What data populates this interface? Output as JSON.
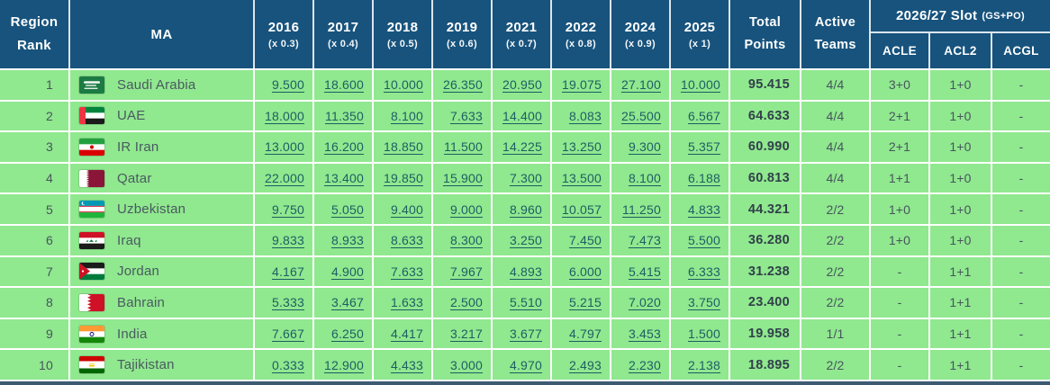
{
  "table": {
    "header": {
      "region_rank": "Region Rank",
      "ma": "MA",
      "years": [
        {
          "year": "2016",
          "mult": "(x 0.3)"
        },
        {
          "year": "2017",
          "mult": "(x 0.4)"
        },
        {
          "year": "2018",
          "mult": "(x 0.5)"
        },
        {
          "year": "2019",
          "mult": "(x 0.6)"
        },
        {
          "year": "2021",
          "mult": "(x 0.7)"
        },
        {
          "year": "2022",
          "mult": "(x 0.8)"
        },
        {
          "year": "2024",
          "mult": "(x 0.9)"
        },
        {
          "year": "2025",
          "mult": "(x 1)"
        }
      ],
      "total": "Total Points",
      "active": "Active Teams",
      "slot_title": "2026/27 Slot",
      "slot_subtitle": "(GS+PO)",
      "slot_cols": [
        "ACLE",
        "ACL2",
        "ACGL"
      ]
    },
    "rows": [
      {
        "rank": "1",
        "ma": "Saudi Arabia",
        "flag": "saudi-arabia",
        "scores": [
          "9.500",
          "18.600",
          "10.000",
          "26.350",
          "20.950",
          "19.075",
          "27.100",
          "10.000"
        ],
        "total": "95.415",
        "active": "4/4",
        "acle": "3+0",
        "acl2": "1+0",
        "acgl": "-"
      },
      {
        "rank": "2",
        "ma": "UAE",
        "flag": "uae",
        "scores": [
          "18.000",
          "11.350",
          "8.100",
          "7.633",
          "14.400",
          "8.083",
          "25.500",
          "6.567"
        ],
        "total": "64.633",
        "active": "4/4",
        "acle": "2+1",
        "acl2": "1+0",
        "acgl": "-"
      },
      {
        "rank": "3",
        "ma": "IR Iran",
        "flag": "iran",
        "scores": [
          "13.000",
          "16.200",
          "18.850",
          "11.500",
          "14.225",
          "13.250",
          "9.300",
          "5.357"
        ],
        "total": "60.990",
        "active": "4/4",
        "acle": "2+1",
        "acl2": "1+0",
        "acgl": "-"
      },
      {
        "rank": "4",
        "ma": "Qatar",
        "flag": "qatar",
        "scores": [
          "22.000",
          "13.400",
          "19.850",
          "15.900",
          "7.300",
          "13.500",
          "8.100",
          "6.188"
        ],
        "total": "60.813",
        "active": "4/4",
        "acle": "1+1",
        "acl2": "1+0",
        "acgl": "-"
      },
      {
        "rank": "5",
        "ma": "Uzbekistan",
        "flag": "uzbekistan",
        "scores": [
          "9.750",
          "5.050",
          "9.400",
          "9.000",
          "8.960",
          "10.057",
          "11.250",
          "4.833"
        ],
        "total": "44.321",
        "active": "2/2",
        "acle": "1+0",
        "acl2": "1+0",
        "acgl": "-"
      },
      {
        "rank": "6",
        "ma": "Iraq",
        "flag": "iraq",
        "scores": [
          "9.833",
          "8.933",
          "8.633",
          "8.300",
          "3.250",
          "7.450",
          "7.473",
          "5.500"
        ],
        "total": "36.280",
        "active": "2/2",
        "acle": "1+0",
        "acl2": "1+0",
        "acgl": "-"
      },
      {
        "rank": "7",
        "ma": "Jordan",
        "flag": "jordan",
        "scores": [
          "4.167",
          "4.900",
          "7.633",
          "7.967",
          "4.893",
          "6.000",
          "5.415",
          "6.333"
        ],
        "total": "31.238",
        "active": "2/2",
        "acle": "-",
        "acl2": "1+1",
        "acgl": "-"
      },
      {
        "rank": "8",
        "ma": "Bahrain",
        "flag": "bahrain",
        "scores": [
          "5.333",
          "3.467",
          "1.633",
          "2.500",
          "5.510",
          "5.215",
          "7.020",
          "3.750"
        ],
        "total": "23.400",
        "active": "2/2",
        "acle": "-",
        "acl2": "1+1",
        "acgl": "-"
      },
      {
        "rank": "9",
        "ma": "India",
        "flag": "india",
        "scores": [
          "7.667",
          "6.250",
          "4.417",
          "3.217",
          "3.677",
          "4.797",
          "3.453",
          "1.500"
        ],
        "total": "19.958",
        "active": "1/1",
        "acle": "-",
        "acl2": "1+1",
        "acgl": "-"
      },
      {
        "rank": "10",
        "ma": "Tajikistan",
        "flag": "tajikistan",
        "scores": [
          "0.333",
          "12.900",
          "4.433",
          "3.000",
          "4.970",
          "2.493",
          "2.230",
          "2.138"
        ],
        "total": "18.895",
        "active": "2/2",
        "acle": "-",
        "acl2": "1+1",
        "acgl": "-"
      }
    ],
    "colors": {
      "header_bg": "#17537D",
      "row_bg": "#90E88F",
      "grid_line": "#FFFFFF",
      "link_text": "#1D5E63",
      "total_text": "#31404A",
      "bottom_edge": "#3C5A71"
    }
  }
}
